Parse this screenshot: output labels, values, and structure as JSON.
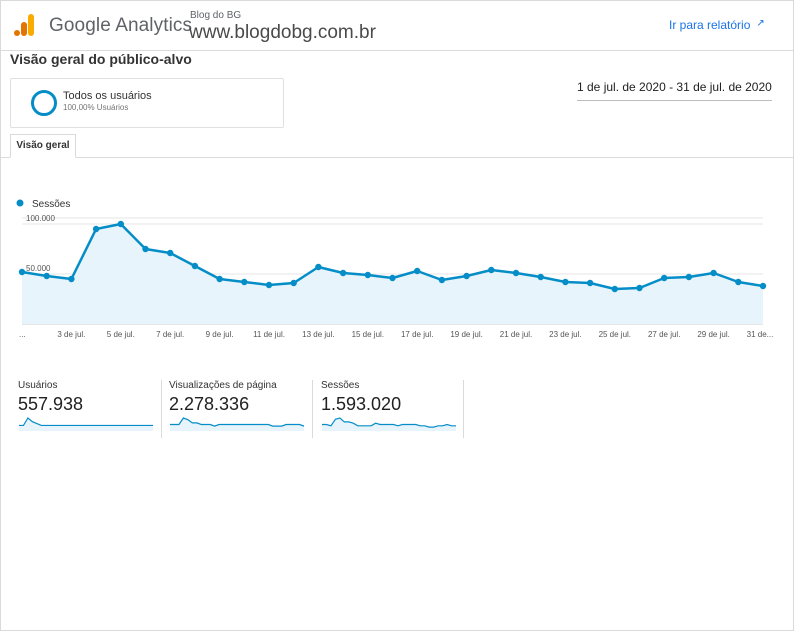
{
  "header": {
    "brand": "Google Analytics",
    "account_name": "Blog do BG",
    "property_url": "www.blogdobg.com.br",
    "report_link": "Ir para relatório",
    "report_link_icon": "external-link-icon",
    "logo_colors": [
      "#F9AB00",
      "#E37400"
    ]
  },
  "page": {
    "title": "Visão geral do público-alvo",
    "date_range": "1 de jul. de 2020 - 31 de jul. de 2020"
  },
  "segment": {
    "name": "Todos os usuários",
    "share": "100,00% Usuários",
    "color": "#058dc7"
  },
  "tabs": [
    {
      "label": "Visão geral",
      "active": true
    }
  ],
  "chart_data": {
    "type": "area",
    "series": [
      {
        "name": "Sessões",
        "color": "#058dc7",
        "values": [
          52000,
          48000,
          45000,
          95000,
          100000,
          75000,
          71000,
          58000,
          45000,
          42000,
          39000,
          41000,
          57000,
          51000,
          49000,
          46000,
          53000,
          44000,
          48000,
          54000,
          51000,
          47000,
          42000,
          41000,
          35000,
          36000,
          46000,
          47000,
          51000,
          42000,
          38000
        ]
      }
    ],
    "x_tick_labels": [
      "...",
      "3 de jul.",
      "5 de jul.",
      "7 de jul.",
      "9 de jul.",
      "11 de jul.",
      "13 de jul.",
      "15 de jul.",
      "17 de jul.",
      "19 de jul.",
      "21 de jul.",
      "23 de jul.",
      "25 de jul.",
      "27 de jul.",
      "29 de jul.",
      "31 de..."
    ],
    "y_tick_labels": [
      "100.000",
      "50.000"
    ],
    "y_ticks": [
      100000,
      50000
    ],
    "ylim": [
      0,
      100000
    ],
    "grid": true,
    "legend": "top-left"
  },
  "metrics": [
    {
      "label": "Usuários",
      "value": "557.938",
      "trend": [
        3,
        3,
        7,
        5,
        4,
        3,
        3,
        3,
        3,
        3,
        3,
        3,
        3,
        3,
        3,
        3,
        3,
        3,
        3,
        3,
        3,
        3,
        3,
        3,
        3,
        3,
        3,
        3,
        3,
        3,
        3
      ]
    },
    {
      "label": "Visualizações de página",
      "value": "2.278.336",
      "trend": [
        4,
        4,
        4,
        8,
        7,
        5,
        5,
        4,
        4,
        4,
        3,
        4,
        4,
        4,
        4,
        4,
        4,
        4,
        4,
        4,
        4,
        4,
        4,
        3,
        3,
        3,
        4,
        4,
        4,
        4,
        3
      ]
    },
    {
      "label": "Sessões",
      "value": "1.593.020",
      "trend": [
        5,
        5,
        4,
        9,
        10,
        7,
        7,
        6,
        4,
        4,
        4,
        4,
        6,
        5,
        5,
        5,
        5,
        4,
        5,
        5,
        5,
        5,
        4,
        4,
        3,
        3,
        4,
        4,
        5,
        4,
        4
      ]
    }
  ]
}
